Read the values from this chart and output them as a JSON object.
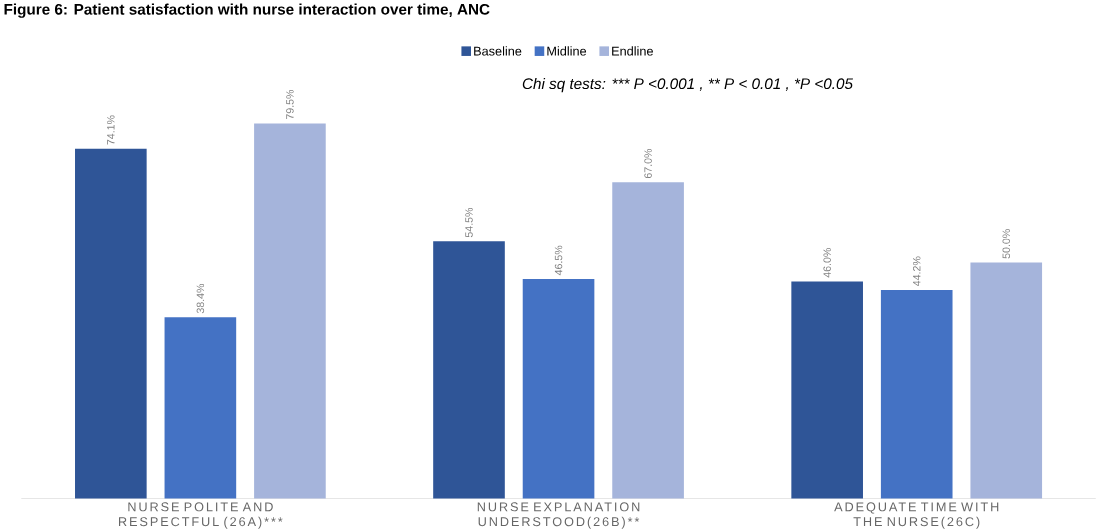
{
  "chart_data": {
    "type": "bar",
    "title": "Figure 6: Patient satisfaction with nurse interaction over time, ANC",
    "categories": [
      "NURSE POLITE AND RESPECTFUL (26A)***",
      "NURSE EXPLANATION UNDERSTOOD(26B)**",
      "ADEQUATE TIME WITH THE NURSE(26C)"
    ],
    "series": [
      {
        "name": "Baseline",
        "color": "#2f5597",
        "values": [
          74.1,
          54.5,
          46.0
        ],
        "value_labels": [
          "74.1%",
          "54.5%",
          "46.0%"
        ]
      },
      {
        "name": "Midline",
        "color": "#4472c4",
        "values": [
          38.4,
          46.5,
          44.2
        ],
        "value_labels": [
          "38.4%",
          "46.5%",
          "44.2%"
        ]
      },
      {
        "name": "Endline",
        "color": "#a5b4db",
        "values": [
          79.5,
          67.0,
          50.0
        ],
        "value_labels": [
          "79.5%",
          "67.0%",
          "50.0%"
        ]
      }
    ],
    "annotations": [
      "Chi sq tests: *** P <0.001 , ** P < 0.01 , *P <0.05"
    ],
    "legend": "top"
  }
}
